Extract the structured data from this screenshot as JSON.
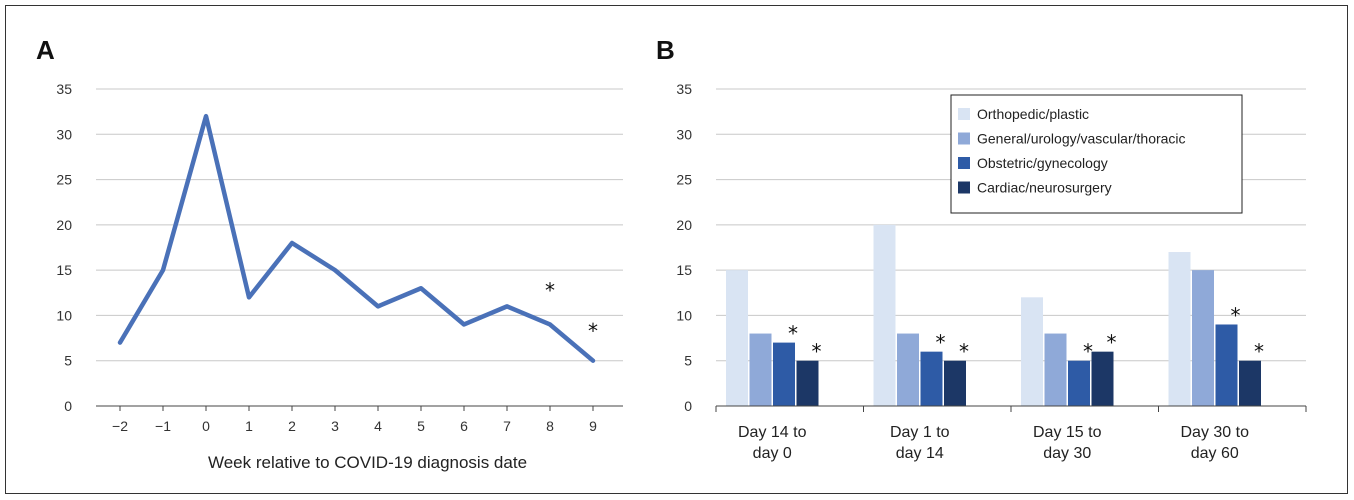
{
  "chart_data": [
    {
      "panel": "A",
      "type": "line",
      "x": [
        -2,
        -1,
        0,
        1,
        2,
        3,
        4,
        5,
        6,
        7,
        8,
        9
      ],
      "tick_labels": [
        "−2",
        "−1",
        "0",
        "1",
        "2",
        "3",
        "4",
        "5",
        "6",
        "7",
        "8",
        "9"
      ],
      "series": [
        {
          "values": [
            7,
            15,
            32,
            12,
            18,
            15,
            11,
            13,
            9,
            11,
            9,
            5
          ],
          "color": "#4a71b8"
        }
      ],
      "annotations": [
        {
          "x": 8,
          "y": 13,
          "text": "*"
        },
        {
          "x": 9,
          "y": 8.5,
          "text": "*"
        }
      ],
      "xlabel": "Week relative to COVID-19 diagnosis date",
      "ylabel": "",
      "ylim": [
        0,
        35
      ],
      "yticks": [
        0,
        5,
        10,
        15,
        20,
        25,
        30,
        35
      ],
      "grid": true
    },
    {
      "panel": "B",
      "type": "bar",
      "categories": [
        [
          "Day 14 to",
          "day 0"
        ],
        [
          "Day 1 to",
          "day 14"
        ],
        [
          "Day 15 to",
          "day 30"
        ],
        [
          "Day 30 to",
          "day 60"
        ]
      ],
      "series": [
        {
          "name": "Orthopedic/plastic",
          "values": [
            15,
            20,
            12,
            17
          ],
          "color": "#d9e4f3"
        },
        {
          "name": "General/urology/vascular/thoracic",
          "values": [
            8,
            8,
            8,
            15
          ],
          "color": "#8fa9d8"
        },
        {
          "name": "Obstetric/gynecology",
          "values": [
            7,
            6,
            5,
            9
          ],
          "color": "#2e5ba6",
          "stars": [
            true,
            true,
            true,
            true
          ]
        },
        {
          "name": "Cardiac/neurosurgery",
          "values": [
            5,
            5,
            6,
            5
          ],
          "color": "#1c3766",
          "stars": [
            true,
            true,
            true,
            true
          ]
        }
      ],
      "star_text": "*",
      "xlabel": "",
      "ylabel": "",
      "ylim": [
        0,
        35
      ],
      "yticks": [
        0,
        5,
        10,
        15,
        20,
        25,
        30,
        35
      ],
      "grid": true,
      "legend": "top-right"
    }
  ]
}
